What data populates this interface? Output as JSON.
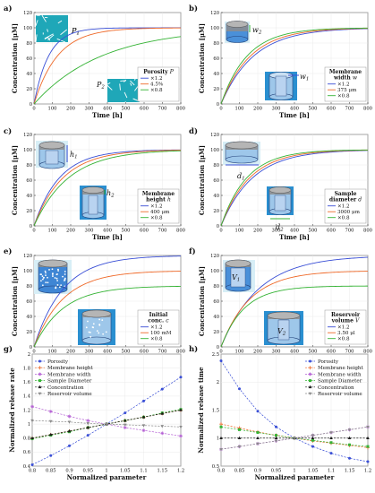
{
  "colors": {
    "blue": "#3a4fd6",
    "orange": "#ef6a2a",
    "green": "#35b335",
    "navy": "#24427a",
    "teal": "#2f9da6",
    "cyan": "#33b6c8",
    "lilac": "#b45fd4",
    "purple": "#8b2fb0",
    "black": "#1a1a1a",
    "gray": "#8a8a8a"
  },
  "chart_data": [
    {
      "type": "line",
      "panel": "a)",
      "xlabel": "Time [h]",
      "ylabel": "Concentration [μM]",
      "xlim": [
        0,
        800
      ],
      "ylim": [
        0,
        120
      ],
      "xticks": [
        "0",
        "100",
        "200",
        "300",
        "400",
        "500",
        "600",
        "700",
        "800"
      ],
      "yticks": [
        "0",
        "20",
        "40",
        "60",
        "80",
        "100",
        "120"
      ],
      "legend": {
        "title": "Porosity",
        "title_symbol": "P",
        "entries": [
          "×1.2",
          "4.5%",
          "×0.8"
        ],
        "placement": "lower-right"
      },
      "annotations": [
        "P1",
        "P2"
      ],
      "series": [
        {
          "name": "×1.2",
          "color": "blue",
          "plateau": 100,
          "rate": 0.0125
        },
        {
          "name": "4.5%",
          "color": "orange",
          "plateau": 100,
          "rate": 0.0078
        },
        {
          "name": "×0.8",
          "color": "green",
          "plateau": 100,
          "rate": 0.0027
        }
      ]
    },
    {
      "type": "line",
      "panel": "b)",
      "xlabel": "Time [h]",
      "ylabel": "Concentration [μM]",
      "xlim": [
        0,
        800
      ],
      "ylim": [
        0,
        120
      ],
      "xticks": [
        "0",
        "100",
        "200",
        "300",
        "400",
        "500",
        "600",
        "700",
        "800"
      ],
      "yticks": [
        "0",
        "20",
        "40",
        "60",
        "80",
        "100",
        "120"
      ],
      "legend": {
        "title": "Membrane width",
        "title_symbol": "w",
        "entries": [
          "×1.2",
          "375 μm",
          "×0.8"
        ],
        "placement": "lower-right"
      },
      "annotations": [
        "w2",
        "w1"
      ],
      "series": [
        {
          "name": "×1.2",
          "color": "blue",
          "plateau": 100,
          "rate": 0.0056
        },
        {
          "name": "375 μm",
          "color": "orange",
          "plateau": 100,
          "rate": 0.0062
        },
        {
          "name": "×0.8",
          "color": "green",
          "plateau": 100,
          "rate": 0.007
        }
      ]
    },
    {
      "type": "line",
      "panel": "c)",
      "xlabel": "Time [h]",
      "ylabel": "Concentration [μM]",
      "xlim": [
        0,
        800
      ],
      "ylim": [
        0,
        120
      ],
      "xticks": [
        "0",
        "100",
        "200",
        "300",
        "400",
        "500",
        "600",
        "700",
        "800"
      ],
      "yticks": [
        "0",
        "20",
        "40",
        "60",
        "80",
        "100",
        "120"
      ],
      "legend": {
        "title": "Membrane height",
        "title_symbol": "h",
        "entries": [
          "×1.2",
          "400 μm",
          "×0.8"
        ],
        "placement": "lower-right"
      },
      "annotations": [
        "h1",
        "h2"
      ],
      "series": [
        {
          "name": "×1.2",
          "color": "blue",
          "plateau": 100,
          "rate": 0.0072
        },
        {
          "name": "400 μm",
          "color": "orange",
          "plateau": 100,
          "rate": 0.0063
        },
        {
          "name": "×0.8",
          "color": "green",
          "plateau": 100,
          "rate": 0.0053
        }
      ]
    },
    {
      "type": "line",
      "panel": "d)",
      "xlabel": "Time [h]",
      "ylabel": "Concentration [μM]",
      "xlim": [
        0,
        800
      ],
      "ylim": [
        0,
        120
      ],
      "xticks": [
        "0",
        "100",
        "200",
        "300",
        "400",
        "500",
        "600",
        "700",
        "800"
      ],
      "yticks": [
        "0",
        "20",
        "40",
        "60",
        "80",
        "100",
        "120"
      ],
      "legend": {
        "title": "Sample diameter",
        "title_symbol": "d",
        "entries": [
          "×1.2",
          "3000 μm",
          "×0.8"
        ],
        "placement": "lower-right"
      },
      "annotations": [
        "d1",
        "d2"
      ],
      "series": [
        {
          "name": "×1.2",
          "color": "blue",
          "plateau": 100,
          "rate": 0.0058
        },
        {
          "name": "3000 μm",
          "color": "orange",
          "plateau": 100,
          "rate": 0.0064
        },
        {
          "name": "×0.8",
          "color": "green",
          "plateau": 100,
          "rate": 0.0071
        }
      ]
    },
    {
      "type": "line",
      "panel": "e)",
      "xlabel": "Time [h]",
      "ylabel": "Concentration [μM]",
      "xlim": [
        0,
        800
      ],
      "ylim": [
        0,
        120
      ],
      "xticks": [
        "0",
        "100",
        "200",
        "300",
        "400",
        "500",
        "600",
        "700",
        "800"
      ],
      "yticks": [
        "0",
        "20",
        "40",
        "60",
        "80",
        "100",
        "120"
      ],
      "legend": {
        "title": "Initial conc.",
        "title_symbol": "c",
        "entries": [
          "×1.2",
          "100 mM",
          "×0.8"
        ],
        "placement": "lower-right"
      },
      "annotations": [],
      "series": [
        {
          "name": "×1.2",
          "color": "blue",
          "plateau": 120,
          "rate": 0.0063
        },
        {
          "name": "100 mM",
          "color": "orange",
          "plateau": 100,
          "rate": 0.0063
        },
        {
          "name": "×0.8",
          "color": "green",
          "plateau": 80,
          "rate": 0.0063
        }
      ]
    },
    {
      "type": "line",
      "panel": "f)",
      "xlabel": "Time [h]",
      "ylabel": "Concentration [μM]",
      "xlim": [
        0,
        800
      ],
      "ylim": [
        0,
        120
      ],
      "xticks": [
        "0",
        "100",
        "200",
        "300",
        "400",
        "500",
        "600",
        "700",
        "800"
      ],
      "yticks": [
        "0",
        "20",
        "40",
        "60",
        "80",
        "100",
        "120"
      ],
      "legend": {
        "title": "Reservoir volume",
        "title_symbol": "V",
        "entries": [
          "×1.2",
          "3.50 μl",
          "×0.8"
        ],
        "placement": "lower-right"
      },
      "annotations": [
        "V1",
        "V2"
      ],
      "series": [
        {
          "name": "×1.2",
          "color": "blue",
          "plateau": 120,
          "rate": 0.0049
        },
        {
          "name": "3.50 μl",
          "color": "orange",
          "plateau": 100,
          "rate": 0.0063
        },
        {
          "name": "×0.8",
          "color": "green",
          "plateau": 80,
          "rate": 0.0079
        }
      ]
    },
    {
      "type": "line",
      "panel": "g)",
      "xlabel": "Normalized parameter",
      "ylabel": "Normalized release rate",
      "xlim": [
        0.8,
        1.2
      ],
      "ylim": [
        0.4,
        2
      ],
      "xticks": [
        "0.8",
        "0.85",
        "0.9",
        "0.95",
        "1",
        "1.05",
        "1.1",
        "1.15",
        "1.2"
      ],
      "yticks": [
        "0.4",
        "0.6",
        "0.8",
        "1",
        "1.2",
        "1.4",
        "1.6",
        "1.8",
        "2"
      ],
      "x": [
        0.8,
        0.85,
        0.9,
        0.95,
        1.0,
        1.05,
        1.1,
        1.15,
        1.2
      ],
      "legend": {
        "placement": "upper-left"
      },
      "series": [
        {
          "name": "Porosity",
          "color": "blue",
          "marker": "circle",
          "values": [
            0.42,
            0.55,
            0.69,
            0.84,
            1.0,
            1.16,
            1.33,
            1.5,
            1.67
          ]
        },
        {
          "name": "Membrane height",
          "color": "orange",
          "marker": "plus",
          "values": [
            0.8,
            0.85,
            0.9,
            0.95,
            1.0,
            1.05,
            1.1,
            1.15,
            1.2
          ]
        },
        {
          "name": "Membrane width",
          "color": "lilac",
          "marker": "star",
          "values": [
            1.25,
            1.18,
            1.11,
            1.05,
            1.0,
            0.95,
            0.91,
            0.87,
            0.83
          ]
        },
        {
          "name": "Sample Diameter",
          "color": "green",
          "marker": "square",
          "values": [
            0.79,
            0.84,
            0.89,
            0.95,
            1.0,
            1.05,
            1.1,
            1.16,
            1.21
          ]
        },
        {
          "name": "Concentration",
          "color": "black",
          "marker": "triangle",
          "values": [
            0.8,
            0.85,
            0.9,
            0.95,
            1.0,
            1.05,
            1.1,
            1.15,
            1.2
          ]
        },
        {
          "name": "Reservoir volume",
          "color": "gray",
          "marker": "tri-down",
          "values": [
            1.05,
            1.04,
            1.03,
            1.01,
            1.0,
            0.99,
            0.98,
            0.97,
            0.96
          ]
        }
      ]
    },
    {
      "type": "line",
      "panel": "h)",
      "xlabel": "Normalized parameter",
      "ylabel": "Normalized release time",
      "xlim": [
        0.8,
        1.2
      ],
      "ylim": [
        0.5,
        2.5
      ],
      "xticks": [
        "0.8",
        "0.85",
        "0.9",
        "0.95",
        "1",
        "1.05",
        "1.1",
        "1.15",
        "1.2"
      ],
      "yticks": [
        "0.5",
        "1",
        "1.5",
        "2",
        "2.5"
      ],
      "x": [
        0.8,
        0.85,
        0.9,
        0.95,
        1.0,
        1.05,
        1.1,
        1.15,
        1.2
      ],
      "legend": {
        "placement": "upper-right"
      },
      "series": [
        {
          "name": "Porosity",
          "color": "blue",
          "marker": "circle",
          "values": [
            2.38,
            1.88,
            1.48,
            1.2,
            1.0,
            0.85,
            0.73,
            0.64,
            0.58
          ]
        },
        {
          "name": "Membrane height",
          "color": "orange",
          "marker": "plus",
          "values": [
            1.25,
            1.18,
            1.11,
            1.05,
            1.0,
            0.95,
            0.91,
            0.87,
            0.83
          ]
        },
        {
          "name": "Membrane width",
          "color": "lilac",
          "marker": "star",
          "values": [
            0.8,
            0.85,
            0.9,
            0.95,
            1.0,
            1.05,
            1.1,
            1.15,
            1.2
          ]
        },
        {
          "name": "Sample Diameter",
          "color": "green",
          "marker": "square",
          "values": [
            1.2,
            1.15,
            1.1,
            1.05,
            1.0,
            0.96,
            0.92,
            0.88,
            0.85
          ]
        },
        {
          "name": "Concentration",
          "color": "black",
          "marker": "triangle",
          "values": [
            1.0,
            1.0,
            1.0,
            1.0,
            1.0,
            1.0,
            1.0,
            1.0,
            1.0
          ]
        },
        {
          "name": "Reservoir volume",
          "color": "gray",
          "marker": "tri-down",
          "values": [
            0.8,
            0.85,
            0.9,
            0.95,
            1.0,
            1.05,
            1.1,
            1.15,
            1.2
          ]
        }
      ]
    }
  ]
}
